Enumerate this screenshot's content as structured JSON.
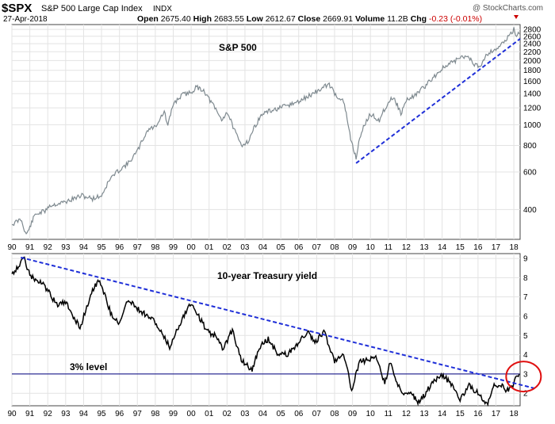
{
  "header": {
    "symbol": "$SPX",
    "name": "S&P 500 Large Cap Index",
    "exchange": "INDX",
    "date": "27-Apr-2018",
    "watermark": "@ StockCharts.com",
    "quote": {
      "open_label": "Open",
      "open": "2675.40",
      "high_label": "High",
      "high": "2683.55",
      "low_label": "Low",
      "low": "2612.67",
      "close_label": "Close",
      "close": "2669.91",
      "volume_label": "Volume",
      "volume": "11.2B",
      "chg_label": "Chg",
      "chg": "-0.23 (-0.01%)"
    }
  },
  "colors": {
    "price_line": "#7f8a90",
    "yield_line": "#000000",
    "trendline": "#1f2fd8",
    "level_line": "#000080",
    "highlight_circle": "#e01010",
    "grid": "#e3e3e3",
    "chg_negative": "#cc0000"
  },
  "chart_data": [
    {
      "type": "line",
      "title": "S&P 500",
      "scale": "log",
      "ylim": [
        290,
        2950
      ],
      "yticks": [
        400,
        600,
        800,
        1000,
        1200,
        1400,
        1600,
        1800,
        2000,
        2200,
        2400,
        2600,
        2800
      ],
      "xlim": [
        1990.0,
        2018.35
      ],
      "x_tick_labels": [
        "90",
        "91",
        "92",
        "93",
        "94",
        "95",
        "96",
        "97",
        "98",
        "99",
        "00",
        "01",
        "02",
        "03",
        "04",
        "05",
        "06",
        "07",
        "08",
        "09",
        "10",
        "11",
        "12",
        "13",
        "14",
        "15",
        "16",
        "17",
        "18"
      ],
      "grid": true,
      "series": [
        {
          "values": [
            [
              1990.0,
              340
            ],
            [
              1990.5,
              360
            ],
            [
              1990.8,
              305
            ],
            [
              1991.0,
              330
            ],
            [
              1991.3,
              380
            ],
            [
              1991.9,
              395
            ],
            [
              1992.0,
              415
            ],
            [
              1993.0,
              435
            ],
            [
              1993.9,
              465
            ],
            [
              1994.5,
              450
            ],
            [
              1995.0,
              465
            ],
            [
              1995.5,
              560
            ],
            [
              1996.0,
              615
            ],
            [
              1996.5,
              660
            ],
            [
              1997.0,
              750
            ],
            [
              1997.6,
              950
            ],
            [
              1998.0,
              980
            ],
            [
              1998.5,
              1150
            ],
            [
              1998.7,
              980
            ],
            [
              1999.0,
              1250
            ],
            [
              1999.5,
              1380
            ],
            [
              2000.0,
              1420
            ],
            [
              2000.3,
              1500
            ],
            [
              2000.7,
              1450
            ],
            [
              2001.0,
              1320
            ],
            [
              2001.7,
              1050
            ],
            [
              2002.0,
              1150
            ],
            [
              2002.5,
              900
            ],
            [
              2002.8,
              800
            ],
            [
              2003.2,
              840
            ],
            [
              2003.6,
              1000
            ],
            [
              2004.0,
              1130
            ],
            [
              2005.0,
              1200
            ],
            [
              2006.0,
              1280
            ],
            [
              2007.0,
              1430
            ],
            [
              2007.7,
              1550
            ],
            [
              2008.0,
              1400
            ],
            [
              2008.5,
              1280
            ],
            [
              2008.9,
              850
            ],
            [
              2009.2,
              700
            ],
            [
              2009.5,
              930
            ],
            [
              2010.0,
              1120
            ],
            [
              2010.5,
              1050
            ],
            [
              2011.0,
              1280
            ],
            [
              2011.3,
              1350
            ],
            [
              2011.7,
              1120
            ],
            [
              2012.0,
              1300
            ],
            [
              2012.5,
              1380
            ],
            [
              2013.0,
              1500
            ],
            [
              2014.0,
              1830
            ],
            [
              2015.0,
              2060
            ],
            [
              2015.5,
              2100
            ],
            [
              2015.7,
              1920
            ],
            [
              2016.1,
              1880
            ],
            [
              2016.5,
              2150
            ],
            [
              2017.0,
              2270
            ],
            [
              2017.5,
              2450
            ],
            [
              2018.0,
              2800
            ],
            [
              2018.1,
              2650
            ],
            [
              2018.3,
              2670
            ]
          ]
        }
      ],
      "annotations": [
        {
          "type": "trendline",
          "from": [
            2009.2,
            660
          ],
          "to": [
            2018.35,
            2530
          ]
        }
      ]
    },
    {
      "type": "line",
      "title": "10-year Treasury yield",
      "ylim": [
        1.35,
        9.25
      ],
      "yticks": [
        2,
        3,
        4,
        5,
        6,
        7,
        8,
        9
      ],
      "xlim": [
        1990.0,
        2018.35
      ],
      "x_tick_labels": [
        "90",
        "91",
        "92",
        "93",
        "94",
        "95",
        "96",
        "97",
        "98",
        "99",
        "00",
        "01",
        "02",
        "03",
        "04",
        "05",
        "06",
        "07",
        "08",
        "09",
        "10",
        "11",
        "12",
        "13",
        "14",
        "15",
        "16",
        "17",
        "18"
      ],
      "grid": true,
      "series": [
        {
          "values": [
            [
              1990.0,
              8.2
            ],
            [
              1990.7,
              9.0
            ],
            [
              1991.0,
              8.1
            ],
            [
              1991.8,
              7.6
            ],
            [
              1992.5,
              6.6
            ],
            [
              1993.0,
              6.7
            ],
            [
              1993.8,
              5.4
            ],
            [
              1994.5,
              7.4
            ],
            [
              1994.9,
              7.9
            ],
            [
              1995.5,
              6.2
            ],
            [
              1996.0,
              5.6
            ],
            [
              1996.5,
              6.9
            ],
            [
              1997.0,
              6.4
            ],
            [
              1997.9,
              5.8
            ],
            [
              1998.8,
              4.4
            ],
            [
              1999.5,
              5.9
            ],
            [
              2000.0,
              6.7
            ],
            [
              2000.9,
              5.2
            ],
            [
              2001.3,
              5.0
            ],
            [
              2001.8,
              4.3
            ],
            [
              2002.3,
              5.3
            ],
            [
              2002.8,
              3.7
            ],
            [
              2003.4,
              3.2
            ],
            [
              2003.8,
              4.4
            ],
            [
              2004.3,
              4.8
            ],
            [
              2004.8,
              4.1
            ],
            [
              2005.4,
              4.0
            ],
            [
              2006.5,
              5.2
            ],
            [
              2006.9,
              4.6
            ],
            [
              2007.4,
              5.2
            ],
            [
              2008.0,
              3.7
            ],
            [
              2008.5,
              4.1
            ],
            [
              2008.95,
              2.2
            ],
            [
              2009.4,
              3.6
            ],
            [
              2010.3,
              3.9
            ],
            [
              2010.8,
              2.5
            ],
            [
              2011.1,
              3.6
            ],
            [
              2011.7,
              2.0
            ],
            [
              2012.3,
              2.1
            ],
            [
              2012.6,
              1.5
            ],
            [
              2013.0,
              1.9
            ],
            [
              2013.5,
              2.6
            ],
            [
              2013.95,
              3.0
            ],
            [
              2014.5,
              2.5
            ],
            [
              2015.0,
              1.7
            ],
            [
              2015.5,
              2.4
            ],
            [
              2016.0,
              2.0
            ],
            [
              2016.5,
              1.4
            ],
            [
              2016.9,
              2.4
            ],
            [
              2017.3,
              2.4
            ],
            [
              2017.7,
              2.1
            ],
            [
              2018.0,
              2.5
            ],
            [
              2018.15,
              2.9
            ],
            [
              2018.3,
              3.0
            ]
          ]
        }
      ],
      "annotations": [
        {
          "type": "trendline",
          "from": [
            1990.5,
            9.05
          ],
          "to": [
            2018.35,
            2.4
          ]
        },
        {
          "type": "hline",
          "y": 3,
          "label": "3% level"
        },
        {
          "type": "circle",
          "center": [
            2018.1,
            2.95
          ]
        }
      ]
    }
  ]
}
